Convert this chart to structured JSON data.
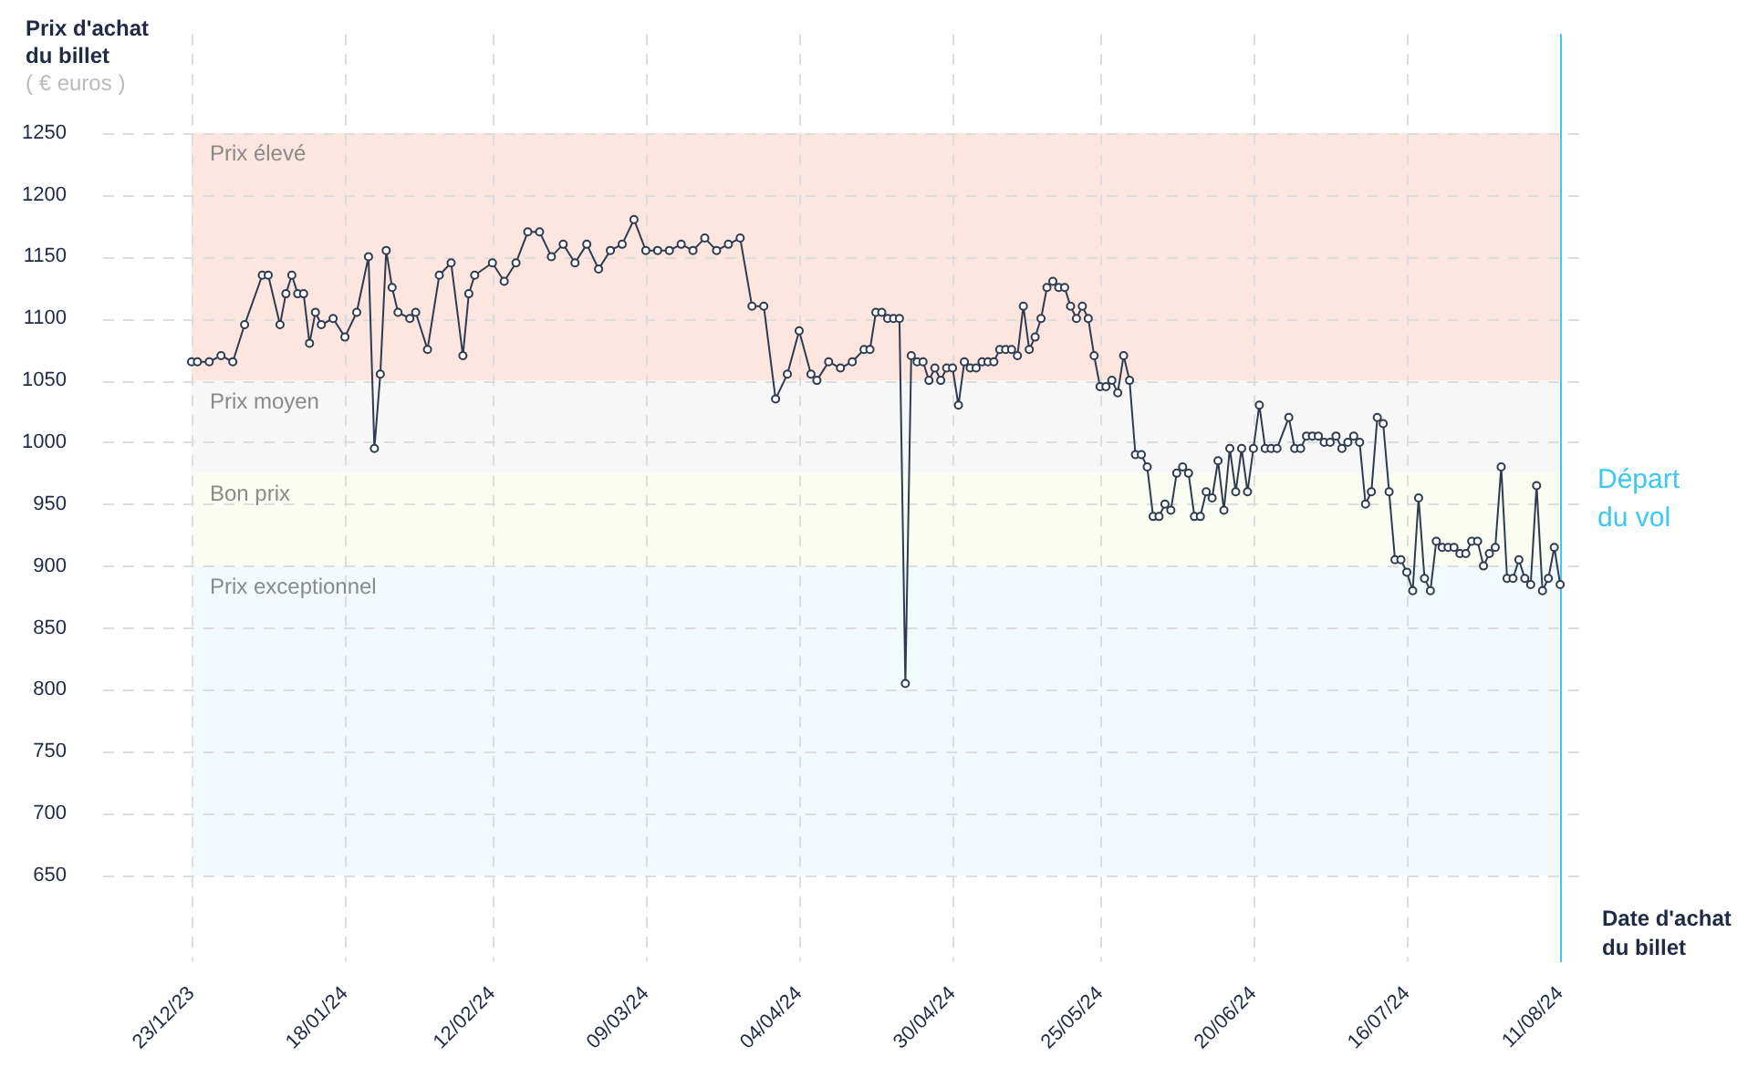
{
  "chart_data": {
    "type": "line",
    "ylabel": "Prix d'achat du billet",
    "xlabel": "Date d'achat du billet",
    "annotations": [
      "( € euros )"
    ],
    "x": [
      "2023-12-23",
      "2023-12-24",
      "2023-12-26",
      "2023-12-28",
      "2023-12-30",
      "2024-01-01",
      "2024-01-04",
      "2024-01-05",
      "2024-01-07",
      "2024-01-08",
      "2024-01-09",
      "2024-01-10",
      "2024-01-11",
      "2024-01-12",
      "2024-01-13",
      "2024-01-14",
      "2024-01-16",
      "2024-01-18",
      "2024-01-20",
      "2024-01-22",
      "2024-01-23",
      "2024-01-24",
      "2024-01-25",
      "2024-01-26",
      "2024-01-27",
      "2024-01-29",
      "2024-01-30",
      "2024-02-01",
      "2024-02-03",
      "2024-02-05",
      "2024-02-07",
      "2024-02-08",
      "2024-02-09",
      "2024-02-12",
      "2024-02-14",
      "2024-02-16",
      "2024-02-18",
      "2024-02-20",
      "2024-02-22",
      "2024-02-24",
      "2024-02-26",
      "2024-02-28",
      "2024-03-01",
      "2024-03-03",
      "2024-03-05",
      "2024-03-07",
      "2024-03-09",
      "2024-03-11",
      "2024-03-13",
      "2024-03-15",
      "2024-03-17",
      "2024-03-19",
      "2024-03-21",
      "2024-03-23",
      "2024-03-25",
      "2024-03-27",
      "2024-03-29",
      "2024-03-31",
      "2024-04-02",
      "2024-04-04",
      "2024-04-06",
      "2024-04-07",
      "2024-04-09",
      "2024-04-11",
      "2024-04-13",
      "2024-04-15",
      "2024-04-16",
      "2024-04-17",
      "2024-04-18",
      "2024-04-19",
      "2024-04-20",
      "2024-04-21",
      "2024-04-22",
      "2024-04-23",
      "2024-04-24",
      "2024-04-25",
      "2024-04-26",
      "2024-04-27",
      "2024-04-28",
      "2024-04-29",
      "2024-04-30",
      "2024-05-01",
      "2024-05-02",
      "2024-05-03",
      "2024-05-04",
      "2024-05-05",
      "2024-05-06",
      "2024-05-07",
      "2024-05-08",
      "2024-05-09",
      "2024-05-10",
      "2024-05-11",
      "2024-05-12",
      "2024-05-13",
      "2024-05-14",
      "2024-05-15",
      "2024-05-16",
      "2024-05-17",
      "2024-05-18",
      "2024-05-19",
      "2024-05-20",
      "2024-05-21",
      "2024-05-22",
      "2024-05-23",
      "2024-05-24",
      "2024-05-25",
      "2024-05-26",
      "2024-05-27",
      "2024-05-28",
      "2024-05-29",
      "2024-05-30",
      "2024-05-31",
      "2024-06-01",
      "2024-06-02",
      "2024-06-03",
      "2024-06-04",
      "2024-06-05",
      "2024-06-06",
      "2024-06-07",
      "2024-06-08",
      "2024-06-09",
      "2024-06-10",
      "2024-06-11",
      "2024-06-12",
      "2024-06-13",
      "2024-06-14",
      "2024-06-15",
      "2024-06-16",
      "2024-06-17",
      "2024-06-18",
      "2024-06-19",
      "2024-06-20",
      "2024-06-21",
      "2024-06-22",
      "2024-06-23",
      "2024-06-24",
      "2024-06-26",
      "2024-06-27",
      "2024-06-28",
      "2024-06-29",
      "2024-06-30",
      "2024-07-01",
      "2024-07-02",
      "2024-07-03",
      "2024-07-04",
      "2024-07-05",
      "2024-07-06",
      "2024-07-07",
      "2024-07-08",
      "2024-07-09",
      "2024-07-10",
      "2024-07-11",
      "2024-07-12",
      "2024-07-13",
      "2024-07-14",
      "2024-07-15",
      "2024-07-16",
      "2024-07-17",
      "2024-07-18",
      "2024-07-19",
      "2024-07-20",
      "2024-07-21",
      "2024-07-22",
      "2024-07-23",
      "2024-07-24",
      "2024-07-25",
      "2024-07-26",
      "2024-07-27",
      "2024-07-28",
      "2024-07-29",
      "2024-07-30",
      "2024-07-31",
      "2024-08-01",
      "2024-08-02",
      "2024-08-03",
      "2024-08-04",
      "2024-08-05",
      "2024-08-06",
      "2024-08-07",
      "2024-08-08",
      "2024-08-09",
      "2024-08-10",
      "2024-08-11"
    ],
    "values": [
      1065,
      1065,
      1065,
      1070,
      1065,
      1095,
      1135,
      1135,
      1095,
      1120,
      1135,
      1120,
      1120,
      1080,
      1105,
      1095,
      1100,
      1085,
      1105,
      1150,
      995,
      1055,
      1155,
      1125,
      1105,
      1100,
      1105,
      1075,
      1135,
      1145,
      1070,
      1120,
      1135,
      1145,
      1130,
      1145,
      1170,
      1170,
      1150,
      1160,
      1145,
      1160,
      1140,
      1155,
      1160,
      1180,
      1155,
      1155,
      1155,
      1160,
      1155,
      1165,
      1155,
      1160,
      1165,
      1110,
      1110,
      1035,
      1055,
      1090,
      1055,
      1050,
      1065,
      1060,
      1065,
      1075,
      1075,
      1105,
      1105,
      1100,
      1100,
      1100,
      805,
      1070,
      1065,
      1065,
      1050,
      1060,
      1050,
      1060,
      1060,
      1030,
      1065,
      1060,
      1060,
      1065,
      1065,
      1065,
      1075,
      1075,
      1075,
      1070,
      1110,
      1075,
      1085,
      1100,
      1125,
      1130,
      1125,
      1125,
      1110,
      1100,
      1110,
      1100,
      1070,
      1045,
      1045,
      1050,
      1040,
      1070,
      1050,
      990,
      990,
      980,
      940,
      940,
      950,
      945,
      975,
      980,
      975,
      940,
      940,
      960,
      955,
      985,
      945,
      995,
      960,
      995,
      960,
      995,
      1030,
      995,
      995,
      995,
      1020,
      995,
      995,
      1005,
      1005,
      1005,
      1000,
      1000,
      1005,
      995,
      1000,
      1005,
      1000,
      950,
      960,
      1020,
      1015,
      960,
      905,
      905,
      895,
      880,
      955,
      890,
      880,
      920,
      915,
      915,
      915,
      910,
      910,
      920,
      920,
      900,
      910,
      915,
      980,
      890,
      890,
      905,
      890,
      885,
      965,
      880,
      890,
      915,
      885
    ],
    "color": "#2f3b50",
    "marker": "circle",
    "line_style": "solid",
    "xlim": [
      "2023-12-08",
      "2024-08-15"
    ],
    "xticks": [
      {
        "value": "2023-12-23",
        "label": "23/12/23"
      },
      {
        "value": "2024-01-18",
        "label": "18/01/24"
      },
      {
        "value": "2024-02-12",
        "label": "12/02/24"
      },
      {
        "value": "2024-03-09",
        "label": "09/03/24"
      },
      {
        "value": "2024-04-04",
        "label": "04/04/24"
      },
      {
        "value": "2024-04-30",
        "label": "30/04/24"
      },
      {
        "value": "2024-05-25",
        "label": "25/05/24"
      },
      {
        "value": "2024-06-20",
        "label": "20/06/24"
      },
      {
        "value": "2024-07-16",
        "label": "16/07/24"
      },
      {
        "value": "2024-08-11",
        "label": "11/08/24"
      }
    ],
    "ylim": [
      580,
      1330
    ],
    "yticks": [
      650,
      700,
      750,
      800,
      850,
      900,
      950,
      1000,
      1050,
      1100,
      1150,
      1200,
      1250
    ],
    "grid": true,
    "bands": [
      {
        "axis": "y",
        "from": 1050,
        "to": 1250,
        "label": "Prix élevé",
        "color": "#fde6df"
      },
      {
        "axis": "y",
        "from": 975,
        "to": 1050,
        "label": "Prix moyen",
        "color": "#f7f7f7"
      },
      {
        "axis": "y",
        "from": 900,
        "to": 975,
        "label": "Bon prix",
        "color": "#fbfcf2"
      },
      {
        "axis": "y",
        "from": 650,
        "to": 900,
        "label": "Prix exceptionnel",
        "color": "#f3fafd"
      }
    ],
    "ref_lines": [
      {
        "axis": "x",
        "value": "2024-08-11",
        "label": "Départ du vol",
        "color": "#3cc8f0"
      }
    ]
  }
}
